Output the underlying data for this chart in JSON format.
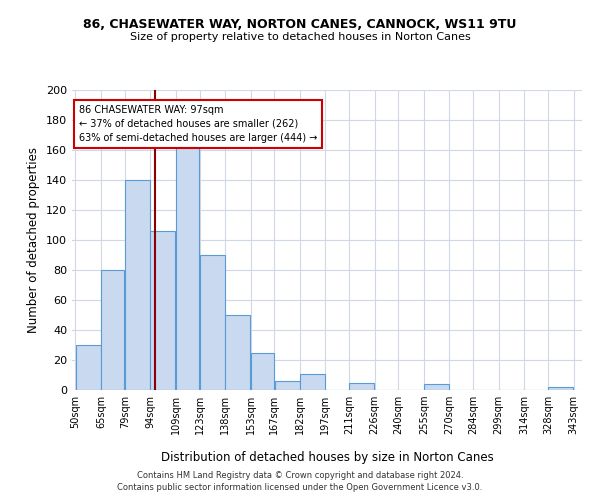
{
  "title": "86, CHASEWATER WAY, NORTON CANES, CANNOCK, WS11 9TU",
  "subtitle": "Size of property relative to detached houses in Norton Canes",
  "xlabel": "Distribution of detached houses by size in Norton Canes",
  "ylabel": "Number of detached properties",
  "bar_color": "#c9d9f0",
  "bar_edge_color": "#5b9bd5",
  "background_color": "#ffffff",
  "grid_color": "#d0d8e8",
  "vline_value": 97,
  "vline_color": "#8b0000",
  "annotation_line1": "86 CHASEWATER WAY: 97sqm",
  "annotation_line2": "← 37% of detached houses are smaller (262)",
  "annotation_line3": "63% of semi-detached houses are larger (444) →",
  "annotation_box_edge": "#cc0000",
  "bin_edges": [
    50,
    65,
    79,
    94,
    109,
    123,
    138,
    153,
    167,
    182,
    197,
    211,
    226,
    240,
    255,
    270,
    284,
    299,
    314,
    328,
    343
  ],
  "bin_heights": [
    30,
    80,
    140,
    106,
    163,
    90,
    50,
    25,
    6,
    11,
    0,
    5,
    0,
    0,
    4,
    0,
    0,
    0,
    0,
    2
  ],
  "ylim": [
    0,
    200
  ],
  "yticks": [
    0,
    20,
    40,
    60,
    80,
    100,
    120,
    140,
    160,
    180,
    200
  ],
  "footer_text": "Contains HM Land Registry data © Crown copyright and database right 2024.\nContains public sector information licensed under the Open Government Licence v3.0.",
  "tick_labels": [
    "50sqm",
    "65sqm",
    "79sqm",
    "94sqm",
    "109sqm",
    "123sqm",
    "138sqm",
    "153sqm",
    "167sqm",
    "182sqm",
    "197sqm",
    "211sqm",
    "226sqm",
    "240sqm",
    "255sqm",
    "270sqm",
    "284sqm",
    "299sqm",
    "314sqm",
    "328sqm",
    "343sqm"
  ]
}
